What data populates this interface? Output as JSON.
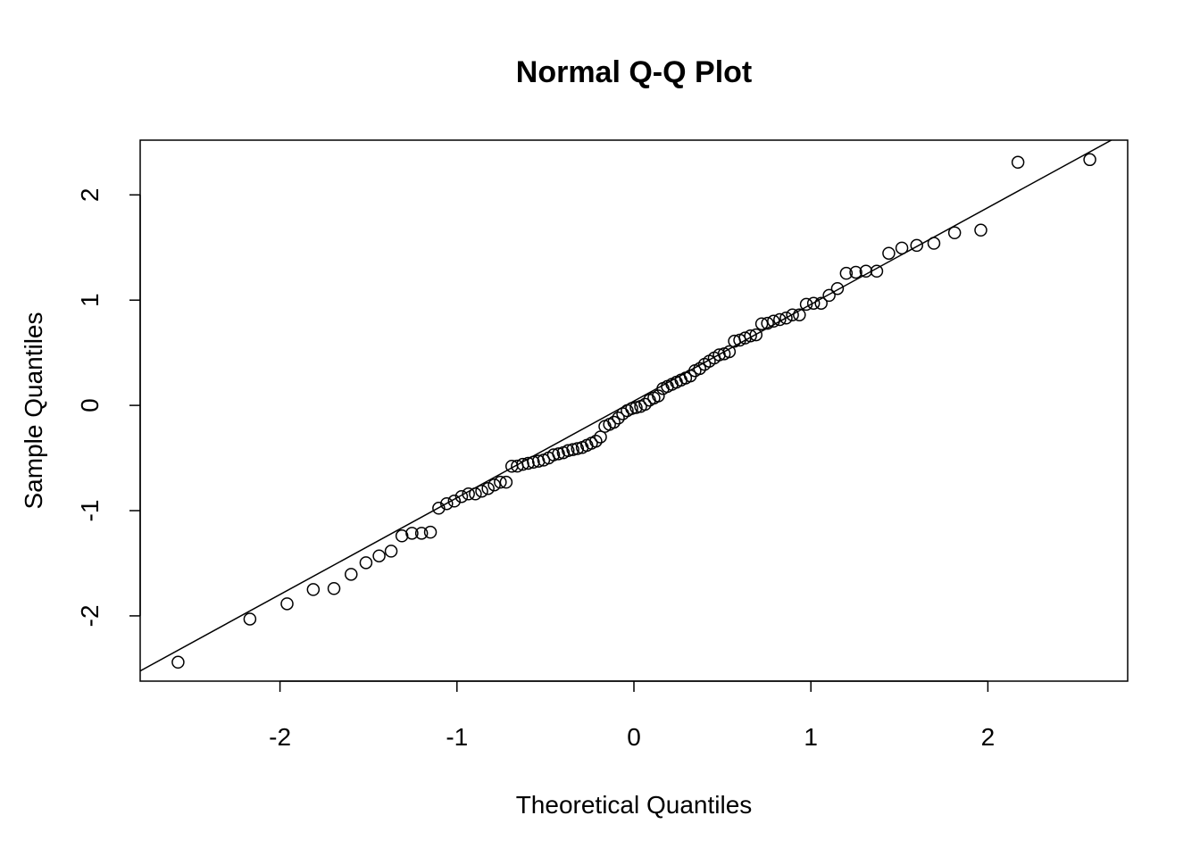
{
  "chart_data": {
    "type": "scatter",
    "title": "Normal Q-Q Plot",
    "xlabel": "Theoretical Quantiles",
    "ylabel": "Sample Quantiles",
    "xlim": [
      -2.79,
      2.79
    ],
    "ylim": [
      -2.62,
      2.52
    ],
    "xticks": [
      -2,
      -1,
      0,
      1,
      2
    ],
    "yticks": [
      -2,
      -1,
      0,
      1,
      2
    ],
    "grid": false,
    "reference_line": {
      "intercept": 0.041,
      "slope": 0.919
    },
    "x": [
      -2.576,
      -2.17,
      -1.96,
      -1.812,
      -1.695,
      -1.598,
      -1.514,
      -1.44,
      -1.372,
      -1.311,
      -1.254,
      -1.2,
      -1.15,
      -1.103,
      -1.058,
      -1.015,
      -0.974,
      -0.935,
      -0.896,
      -0.86,
      -0.824,
      -0.789,
      -0.755,
      -0.722,
      -0.69,
      -0.659,
      -0.628,
      -0.598,
      -0.568,
      -0.539,
      -0.51,
      -0.482,
      -0.454,
      -0.426,
      -0.399,
      -0.372,
      -0.345,
      -0.319,
      -0.292,
      -0.266,
      -0.24,
      -0.215,
      -0.189,
      -0.164,
      -0.138,
      -0.113,
      -0.088,
      -0.063,
      -0.038,
      -0.0125,
      0.0125,
      0.038,
      0.063,
      0.088,
      0.113,
      0.138,
      0.164,
      0.189,
      0.215,
      0.24,
      0.266,
      0.292,
      0.319,
      0.345,
      0.372,
      0.399,
      0.426,
      0.454,
      0.482,
      0.51,
      0.539,
      0.568,
      0.598,
      0.628,
      0.659,
      0.69,
      0.722,
      0.755,
      0.789,
      0.824,
      0.86,
      0.896,
      0.935,
      0.974,
      1.015,
      1.058,
      1.103,
      1.15,
      1.2,
      1.254,
      1.311,
      1.372,
      1.44,
      1.514,
      1.598,
      1.695,
      1.812,
      1.96,
      2.17,
      2.576
    ],
    "y": [
      -2.44,
      -2.03,
      -1.885,
      -1.75,
      -1.74,
      -1.605,
      -1.495,
      -1.43,
      -1.385,
      -1.24,
      -1.215,
      -1.215,
      -1.205,
      -0.977,
      -0.934,
      -0.909,
      -0.866,
      -0.841,
      -0.841,
      -0.815,
      -0.79,
      -0.756,
      -0.73,
      -0.73,
      -0.578,
      -0.577,
      -0.56,
      -0.55,
      -0.54,
      -0.53,
      -0.52,
      -0.5,
      -0.47,
      -0.46,
      -0.45,
      -0.43,
      -0.42,
      -0.41,
      -0.4,
      -0.38,
      -0.36,
      -0.34,
      -0.3,
      -0.2,
      -0.18,
      -0.16,
      -0.12,
      -0.08,
      -0.05,
      -0.03,
      -0.02,
      -0.01,
      0.01,
      0.05,
      0.07,
      0.09,
      0.16,
      0.18,
      0.2,
      0.22,
      0.24,
      0.26,
      0.28,
      0.33,
      0.35,
      0.39,
      0.42,
      0.45,
      0.48,
      0.49,
      0.51,
      0.61,
      0.62,
      0.64,
      0.66,
      0.67,
      0.775,
      0.78,
      0.8,
      0.815,
      0.83,
      0.86,
      0.86,
      0.96,
      0.97,
      0.97,
      1.045,
      1.11,
      1.255,
      1.265,
      1.275,
      1.275,
      1.445,
      1.495,
      1.52,
      1.54,
      1.64,
      1.665,
      2.31,
      2.335
    ]
  }
}
